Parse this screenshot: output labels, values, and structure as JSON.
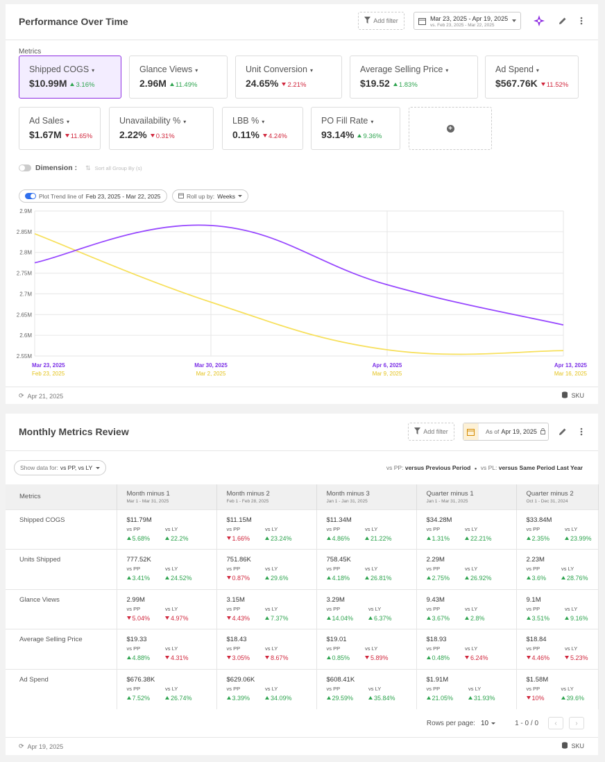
{
  "performance": {
    "title": "Performance Over Time",
    "add_filter": "Add filter",
    "date_range": "Mar 23, 2025 - Apr 19, 2025",
    "compare_range": "vs. Feb 23, 2025 - Mar 22, 2025",
    "metrics_label": "Metrics",
    "tiles": [
      {
        "name": "Shipped COGS",
        "value": "$10.99M",
        "change": "3.16%",
        "dir": "up"
      },
      {
        "name": "Glance Views",
        "value": "2.96M",
        "change": "11.49%",
        "dir": "up"
      },
      {
        "name": "Unit Conversion",
        "value": "24.65%",
        "change": "2.21%",
        "dir": "down"
      },
      {
        "name": "Average Selling Price",
        "value": "$19.52",
        "change": "1.83%",
        "dir": "up"
      },
      {
        "name": "Ad Spend",
        "value": "$567.76K",
        "change": "11.52%",
        "dir": "down"
      },
      {
        "name": "Ad Sales",
        "value": "$1.67M",
        "change": "11.65%",
        "dir": "down"
      },
      {
        "name": "Unavailability %",
        "value": "2.22%",
        "change": "0.31%",
        "dir": "down"
      },
      {
        "name": "LBB %",
        "value": "0.11%",
        "change": "4.24%",
        "dir": "down"
      },
      {
        "name": "PO Fill Rate",
        "value": "93.14%",
        "change": "9.36%",
        "dir": "up"
      }
    ],
    "dimension_label": "Dimension :",
    "dimension_hint": "Sort all Group By (s)",
    "plot_trend_label": "Plot Trend line of",
    "plot_trend_range": "Feb 23, 2025 - Mar 22, 2025",
    "rollup_label": "Roll up by:",
    "rollup_value": "Weeks",
    "footer_date": "Apr 21, 2025",
    "footer_sku": "SKU",
    "colors": {
      "primary": "#9747ff",
      "compare": "#f7e05c"
    }
  },
  "chart_data": {
    "type": "line",
    "ylim": [
      2550000,
      2900000
    ],
    "yticks": [
      "2.9M",
      "2.85M",
      "2.8M",
      "2.75M",
      "2.7M",
      "2.65M",
      "2.6M",
      "2.55M"
    ],
    "x_primary": [
      "Mar 23, 2025",
      "Mar 30, 2025",
      "Apr 6, 2025",
      "Apr 13, 2025"
    ],
    "x_compare": [
      "Feb 23, 2025",
      "Mar 2, 2025",
      "Mar 9, 2025",
      "Mar 16, 2025"
    ],
    "series": [
      {
        "name": "Mar 23, 2025 - Apr 19, 2025",
        "values": [
          2775000,
          2865000,
          2722000,
          2625000
        ]
      },
      {
        "name": "Feb 23, 2025 - Mar 22, 2025",
        "values": [
          2845000,
          2680000,
          2565000,
          2563000
        ]
      }
    ]
  },
  "monthly": {
    "title": "Monthly Metrics Review",
    "add_filter": "Add filter",
    "as_of_label": "As of",
    "as_of_date": "Apr 19, 2025",
    "show_data_label": "Show data for:",
    "show_data_value": "vs PP, vs LY",
    "legend_pp_key": "vs PP:",
    "legend_pp_text": "versus Previous Period",
    "legend_pl_key": "vs PL:",
    "legend_pl_text": "versus Same Period Last Year",
    "metrics_header": "Metrics",
    "vs_pp": "vs PP",
    "vs_ly": "vs LY",
    "columns": [
      {
        "name": "Month minus 1",
        "range": "Mar 1 - Mar 31, 2025"
      },
      {
        "name": "Month minus 2",
        "range": "Feb 1 - Feb 28, 2025"
      },
      {
        "name": "Month minus 3",
        "range": "Jan 1 - Jan 31, 2025"
      },
      {
        "name": "Quarter minus 1",
        "range": "Jan 1 - Mar 31, 2025"
      },
      {
        "name": "Quarter minus 2",
        "range": "Oct 1 - Dec 31, 2024"
      }
    ],
    "rows": [
      {
        "metric": "Shipped COGS",
        "cells": [
          {
            "v": "$11.79M",
            "pp": "5.68%",
            "ppd": "up",
            "ly": "22.2%",
            "lyd": "up"
          },
          {
            "v": "$11.15M",
            "pp": "1.66%",
            "ppd": "down",
            "ly": "23.24%",
            "lyd": "up"
          },
          {
            "v": "$11.34M",
            "pp": "4.86%",
            "ppd": "up",
            "ly": "21.22%",
            "lyd": "up"
          },
          {
            "v": "$34.28M",
            "pp": "1.31%",
            "ppd": "up",
            "ly": "22.21%",
            "lyd": "up"
          },
          {
            "v": "$33.84M",
            "pp": "2.35%",
            "ppd": "up",
            "ly": "23.99%",
            "lyd": "up"
          }
        ]
      },
      {
        "metric": "Units Shipped",
        "cells": [
          {
            "v": "777.52K",
            "pp": "3.41%",
            "ppd": "up",
            "ly": "24.52%",
            "lyd": "up"
          },
          {
            "v": "751.86K",
            "pp": "0.87%",
            "ppd": "down",
            "ly": "29.6%",
            "lyd": "up"
          },
          {
            "v": "758.45K",
            "pp": "4.18%",
            "ppd": "up",
            "ly": "26.81%",
            "lyd": "up"
          },
          {
            "v": "2.29M",
            "pp": "2.75%",
            "ppd": "up",
            "ly": "26.92%",
            "lyd": "up"
          },
          {
            "v": "2.23M",
            "pp": "3.6%",
            "ppd": "up",
            "ly": "28.76%",
            "lyd": "up"
          }
        ]
      },
      {
        "metric": "Glance Views",
        "cells": [
          {
            "v": "2.99M",
            "pp": "5.04%",
            "ppd": "down",
            "ly": "4.97%",
            "lyd": "down"
          },
          {
            "v": "3.15M",
            "pp": "4.43%",
            "ppd": "down",
            "ly": "7.37%",
            "lyd": "up"
          },
          {
            "v": "3.29M",
            "pp": "14.04%",
            "ppd": "up",
            "ly": "6.37%",
            "lyd": "up"
          },
          {
            "v": "9.43M",
            "pp": "3.67%",
            "ppd": "up",
            "ly": "2.8%",
            "lyd": "up"
          },
          {
            "v": "9.1M",
            "pp": "3.51%",
            "ppd": "up",
            "ly": "9.16%",
            "lyd": "up"
          }
        ]
      },
      {
        "metric": "Average Selling Price",
        "cells": [
          {
            "v": "$19.33",
            "pp": "4.88%",
            "ppd": "up",
            "ly": "4.31%",
            "lyd": "down"
          },
          {
            "v": "$18.43",
            "pp": "3.05%",
            "ppd": "down",
            "ly": "8.67%",
            "lyd": "down"
          },
          {
            "v": "$19.01",
            "pp": "0.85%",
            "ppd": "up",
            "ly": "5.89%",
            "lyd": "down"
          },
          {
            "v": "$18.93",
            "pp": "0.48%",
            "ppd": "up",
            "ly": "6.24%",
            "lyd": "down"
          },
          {
            "v": "$18.84",
            "pp": "4.46%",
            "ppd": "down",
            "ly": "5.23%",
            "lyd": "down"
          }
        ]
      },
      {
        "metric": "Ad Spend",
        "cells": [
          {
            "v": "$676.38K",
            "pp": "7.52%",
            "ppd": "up",
            "ly": "26.74%",
            "lyd": "up"
          },
          {
            "v": "$629.06K",
            "pp": "3.39%",
            "ppd": "up",
            "ly": "34.09%",
            "lyd": "up"
          },
          {
            "v": "$608.41K",
            "pp": "29.59%",
            "ppd": "up",
            "ly": "35.84%",
            "lyd": "up"
          },
          {
            "v": "$1.91M",
            "pp": "21.05%",
            "ppd": "up",
            "ly": "31.93%",
            "lyd": "up"
          },
          {
            "v": "$1.58M",
            "pp": "10%",
            "ppd": "down",
            "ly": "39.6%",
            "lyd": "up"
          }
        ]
      }
    ],
    "rows_per_page_label": "Rows per page:",
    "rows_per_page": "10",
    "range_text": "1 - 0 / 0",
    "footer_date": "Apr 19, 2025",
    "footer_sku": "SKU"
  }
}
